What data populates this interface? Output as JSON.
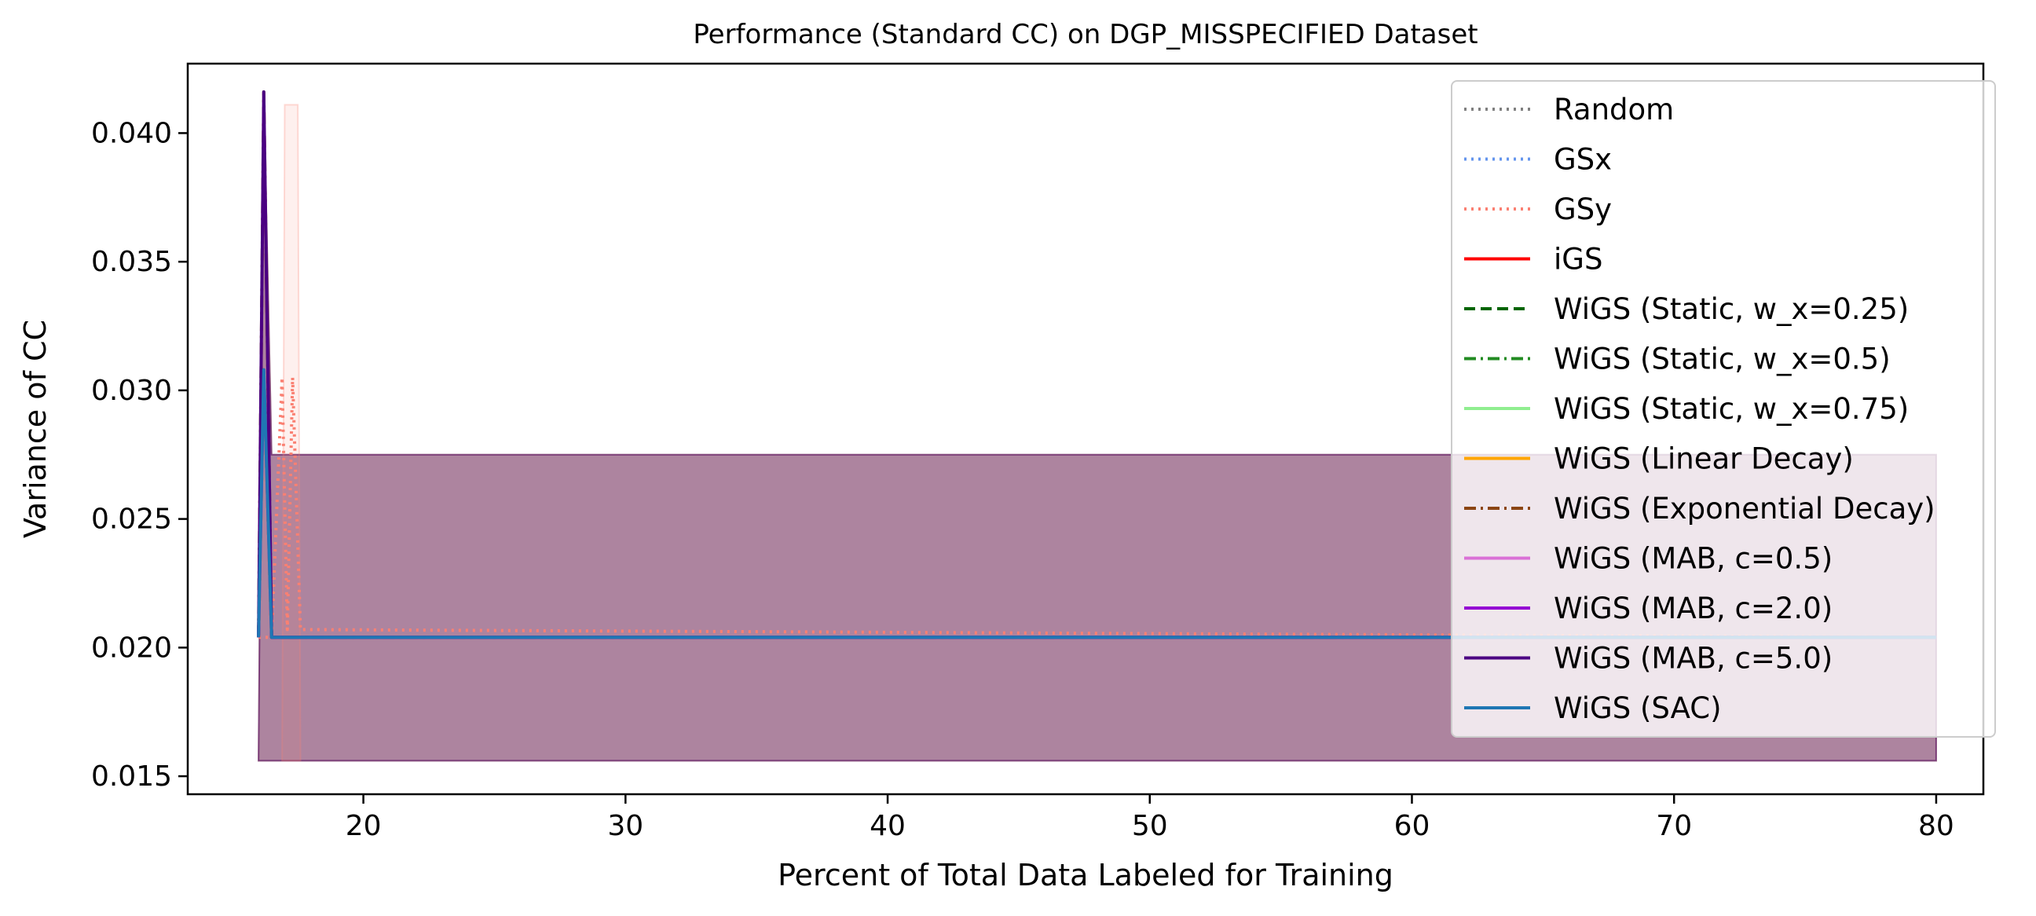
{
  "chart_data": {
    "type": "line",
    "title": "Performance (Standard CC) on DGP_MISSPECIFIED Dataset",
    "xlabel": "Percent of Total Data Labeled for Training",
    "ylabel": "Variance of CC",
    "xlim": [
      13.3,
      81.8
    ],
    "ylim": [
      0.0143,
      0.0427
    ],
    "xticks": [
      20,
      30,
      40,
      50,
      60,
      70,
      80
    ],
    "xtick_labels": [
      "20",
      "30",
      "40",
      "50",
      "60",
      "70",
      "80"
    ],
    "yticks": [
      0.015,
      0.02,
      0.025,
      0.03,
      0.035,
      0.04
    ],
    "ytick_labels": [
      "0.015",
      "0.020",
      "0.025",
      "0.030",
      "0.035",
      "0.040"
    ],
    "grid": false,
    "legend_position": "top-right",
    "bands": [
      {
        "series": "WiGS (Exponential Decay)",
        "color": "#8B4513",
        "opacity": 0.35,
        "lower": [
          [
            16.0,
            0.0156
          ],
          [
            16.2,
            0.0156
          ],
          [
            16.5,
            0.0156
          ],
          [
            80.0,
            0.0156
          ]
        ],
        "upper": [
          [
            16.0,
            0.0156
          ],
          [
            16.2,
            0.0416
          ],
          [
            16.5,
            0.0275
          ],
          [
            80.0,
            0.0275
          ]
        ]
      },
      {
        "series": "WiGS (MAB, c=5.0)",
        "color": "#4B0082",
        "opacity": 0.3,
        "lower": [
          [
            16.0,
            0.0156
          ],
          [
            16.2,
            0.0156
          ],
          [
            16.5,
            0.0156
          ],
          [
            80.0,
            0.0156
          ]
        ],
        "upper": [
          [
            16.0,
            0.0156
          ],
          [
            16.2,
            0.0416
          ],
          [
            16.5,
            0.0275
          ],
          [
            80.0,
            0.0275
          ]
        ]
      },
      {
        "series": "GSy",
        "color": "#FA8072",
        "opacity": 0.12,
        "lower": [
          [
            16.9,
            0.0156
          ],
          [
            17.0,
            0.0156
          ],
          [
            17.5,
            0.0156
          ],
          [
            17.6,
            0.0156
          ]
        ],
        "upper": [
          [
            16.9,
            0.0156
          ],
          [
            17.0,
            0.0411
          ],
          [
            17.5,
            0.0411
          ],
          [
            17.6,
            0.0156
          ]
        ]
      }
    ],
    "series": [
      {
        "name": "Random",
        "color": "#808080",
        "dash": "dotted",
        "points": [
          [
            16.0,
            0.0204
          ],
          [
            16.2,
            0.0308
          ],
          [
            16.5,
            0.0204
          ],
          [
            80.0,
            0.0204
          ]
        ]
      },
      {
        "name": "GSx",
        "color": "#6495ED",
        "dash": "dotted",
        "points": [
          [
            16.0,
            0.0204
          ],
          [
            16.2,
            0.0308
          ],
          [
            16.5,
            0.0204
          ],
          [
            80.0,
            0.0204
          ]
        ]
      },
      {
        "name": "GSy",
        "color": "#FA8072",
        "dash": "dotted",
        "points": [
          [
            16.0,
            0.0204
          ],
          [
            16.5,
            0.0204
          ],
          [
            16.9,
            0.0305
          ],
          [
            17.1,
            0.0207
          ],
          [
            17.3,
            0.0305
          ],
          [
            17.6,
            0.0207
          ],
          [
            80.0,
            0.0204
          ]
        ]
      },
      {
        "name": "iGS",
        "color": "#FF0000",
        "dash": "solid",
        "points": [
          [
            16.0,
            0.0204
          ],
          [
            16.2,
            0.0308
          ],
          [
            16.5,
            0.0204
          ],
          [
            80.0,
            0.0204
          ]
        ]
      },
      {
        "name": "WiGS (Static, w_x=0.25)",
        "color": "#006400",
        "dash": "dashed",
        "points": [
          [
            16.0,
            0.0204
          ],
          [
            16.2,
            0.0308
          ],
          [
            16.5,
            0.0204
          ],
          [
            80.0,
            0.0204
          ]
        ]
      },
      {
        "name": "WiGS (Static, w_x=0.5)",
        "color": "#228B22",
        "dash": "dashdot",
        "points": [
          [
            16.0,
            0.0204
          ],
          [
            16.2,
            0.0308
          ],
          [
            16.5,
            0.0204
          ],
          [
            80.0,
            0.0204
          ]
        ]
      },
      {
        "name": "WiGS (Static, w_x=0.75)",
        "color": "#90EE90",
        "dash": "solid",
        "points": [
          [
            16.0,
            0.0204
          ],
          [
            16.2,
            0.0308
          ],
          [
            16.5,
            0.0204
          ],
          [
            80.0,
            0.0204
          ]
        ]
      },
      {
        "name": "WiGS (Linear Decay)",
        "color": "#FFA500",
        "dash": "solid",
        "points": [
          [
            16.0,
            0.0204
          ],
          [
            16.2,
            0.0308
          ],
          [
            16.5,
            0.0204
          ],
          [
            80.0,
            0.0204
          ]
        ]
      },
      {
        "name": "WiGS (Exponential Decay)",
        "color": "#8B4513",
        "dash": "dashdot",
        "points": [
          [
            16.0,
            0.0204
          ],
          [
            16.2,
            0.0416
          ],
          [
            16.5,
            0.0204
          ],
          [
            80.0,
            0.0204
          ]
        ]
      },
      {
        "name": "WiGS (MAB, c=0.5)",
        "color": "#DA70D6",
        "dash": "solid",
        "points": [
          [
            16.0,
            0.0204
          ],
          [
            16.2,
            0.0308
          ],
          [
            16.5,
            0.0204
          ],
          [
            80.0,
            0.0204
          ]
        ]
      },
      {
        "name": "WiGS (MAB, c=2.0)",
        "color": "#9400D3",
        "dash": "solid",
        "points": [
          [
            16.0,
            0.0204
          ],
          [
            16.2,
            0.0308
          ],
          [
            16.5,
            0.0204
          ],
          [
            80.0,
            0.0204
          ]
        ]
      },
      {
        "name": "WiGS (MAB, c=5.0)",
        "color": "#4B0082",
        "dash": "solid",
        "points": [
          [
            16.0,
            0.0204
          ],
          [
            16.2,
            0.0416
          ],
          [
            16.5,
            0.0204
          ],
          [
            80.0,
            0.0204
          ]
        ]
      },
      {
        "name": "WiGS (SAC)",
        "color": "#1F77B4",
        "dash": "solid",
        "points": [
          [
            16.0,
            0.0204
          ],
          [
            16.2,
            0.0308
          ],
          [
            16.5,
            0.0204
          ],
          [
            80.0,
            0.0204
          ]
        ]
      }
    ]
  }
}
